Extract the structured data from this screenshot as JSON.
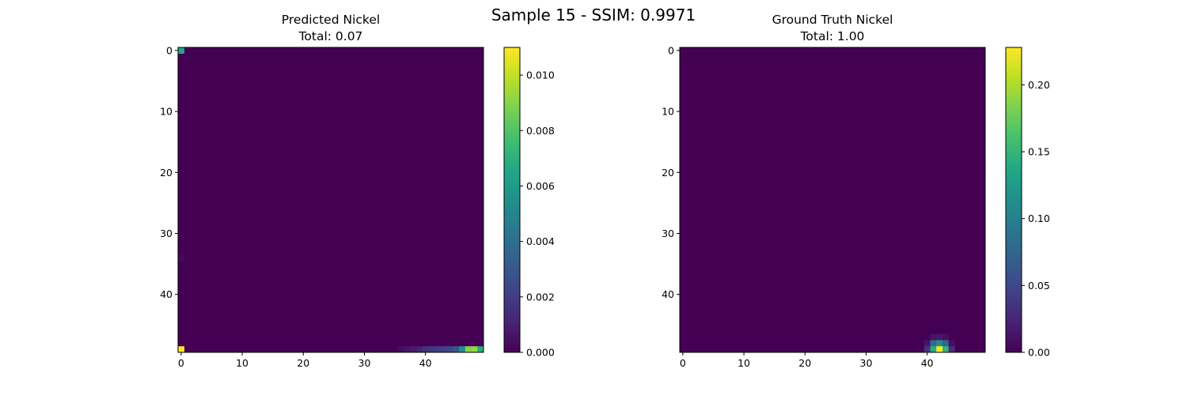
{
  "figure": {
    "suptitle": "Sample 15 - SSIM: 0.9971"
  },
  "chart_data": [
    {
      "type": "heatmap",
      "title_line1": "Predicted Nickel",
      "title_line2": "Total: 0.07",
      "grid_size": 50,
      "x_ticks": [
        0,
        10,
        20,
        30,
        40
      ],
      "y_ticks": [
        0,
        10,
        20,
        30,
        40
      ],
      "colormap": "viridis",
      "colorbar": {
        "min": 0.0,
        "max": 0.011,
        "ticks": [
          0.0,
          0.002,
          0.004,
          0.006,
          0.008,
          0.01
        ],
        "tick_labels": [
          "0.000",
          "0.002",
          "0.004",
          "0.006",
          "0.008",
          "0.010"
        ]
      },
      "background_value": 0.0,
      "cells": [
        {
          "row": 0,
          "col": 0,
          "value": 0.0065
        },
        {
          "row": 34,
          "col": 0,
          "value": 0.0003
        },
        {
          "row": 49,
          "col": 0,
          "value": 0.011
        },
        {
          "row": 49,
          "col": 36,
          "value": 0.0004
        },
        {
          "row": 49,
          "col": 37,
          "value": 0.0006
        },
        {
          "row": 49,
          "col": 38,
          "value": 0.0008
        },
        {
          "row": 49,
          "col": 39,
          "value": 0.0011
        },
        {
          "row": 49,
          "col": 40,
          "value": 0.0016
        },
        {
          "row": 49,
          "col": 41,
          "value": 0.0018
        },
        {
          "row": 49,
          "col": 42,
          "value": 0.002
        },
        {
          "row": 49,
          "col": 43,
          "value": 0.0022
        },
        {
          "row": 49,
          "col": 44,
          "value": 0.0024
        },
        {
          "row": 49,
          "col": 45,
          "value": 0.003
        },
        {
          "row": 49,
          "col": 46,
          "value": 0.0055
        },
        {
          "row": 49,
          "col": 47,
          "value": 0.009
        },
        {
          "row": 49,
          "col": 48,
          "value": 0.0092
        },
        {
          "row": 49,
          "col": 49,
          "value": 0.0068
        }
      ]
    },
    {
      "type": "heatmap",
      "title_line1": "Ground Truth Nickel",
      "title_line2": "Total: 1.00",
      "grid_size": 50,
      "x_ticks": [
        0,
        10,
        20,
        30,
        40
      ],
      "y_ticks": [
        0,
        10,
        20,
        30,
        40
      ],
      "colormap": "viridis",
      "colorbar": {
        "min": 0.0,
        "max": 0.228,
        "ticks": [
          0.0,
          0.05,
          0.1,
          0.15,
          0.2
        ],
        "tick_labels": [
          "0.00",
          "0.05",
          "0.10",
          "0.15",
          "0.20"
        ]
      },
      "background_value": 0.0,
      "cells": [
        {
          "row": 47,
          "col": 41,
          "value": 0.012
        },
        {
          "row": 47,
          "col": 42,
          "value": 0.016
        },
        {
          "row": 47,
          "col": 43,
          "value": 0.01
        },
        {
          "row": 48,
          "col": 40,
          "value": 0.012
        },
        {
          "row": 48,
          "col": 41,
          "value": 0.08
        },
        {
          "row": 48,
          "col": 42,
          "value": 0.11
        },
        {
          "row": 48,
          "col": 43,
          "value": 0.075
        },
        {
          "row": 48,
          "col": 44,
          "value": 0.01
        },
        {
          "row": 49,
          "col": 40,
          "value": 0.035
        },
        {
          "row": 49,
          "col": 41,
          "value": 0.14
        },
        {
          "row": 49,
          "col": 42,
          "value": 0.228
        },
        {
          "row": 49,
          "col": 43,
          "value": 0.15
        },
        {
          "row": 49,
          "col": 44,
          "value": 0.03
        }
      ]
    }
  ]
}
